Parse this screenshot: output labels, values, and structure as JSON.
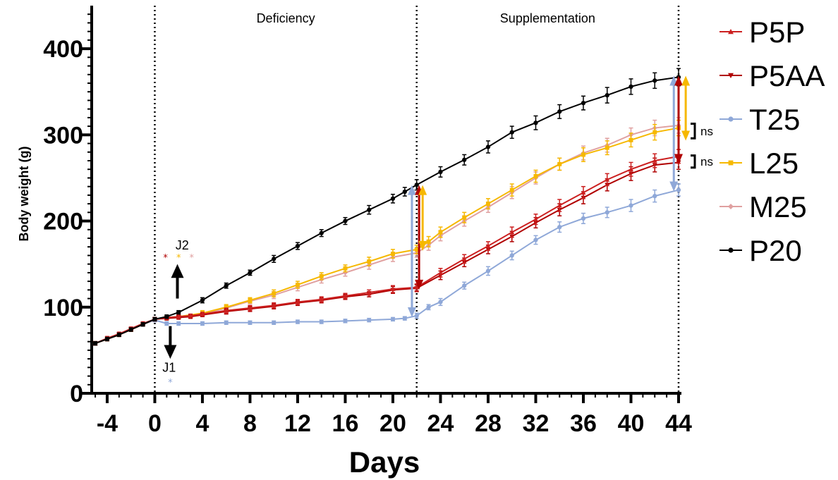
{
  "chart_data": {
    "type": "line",
    "title": "",
    "xlabel": "Days",
    "ylabel": "Body weight (g)",
    "xlim": [
      -5.3,
      44
    ],
    "ylim": [
      0,
      450
    ],
    "xticks": [
      "-4",
      "0",
      "4",
      "8",
      "12",
      "16",
      "20",
      "24",
      "28",
      "32",
      "36",
      "40",
      "44"
    ],
    "xtick_values": [
      -4,
      0,
      4,
      8,
      12,
      16,
      20,
      24,
      28,
      32,
      36,
      40,
      44
    ],
    "yticks": [
      "0",
      "100",
      "200",
      "300",
      "400"
    ],
    "ytick_values": [
      0,
      100,
      200,
      300,
      400
    ],
    "vlines": [
      0,
      22,
      44
    ],
    "phases": [
      {
        "label": "Deficiency",
        "x": 11
      },
      {
        "label": "Supplementation",
        "x": 33
      }
    ],
    "legend_position": "right",
    "series": [
      {
        "name": "P5P",
        "color": "#cc2020",
        "marker": "triangle-up",
        "x": [
          -5,
          -4,
          -3,
          -2,
          -1,
          0,
          1,
          2,
          3,
          4,
          6,
          8,
          10,
          12,
          14,
          16,
          18,
          20,
          22,
          24,
          26,
          28,
          30,
          32,
          34,
          36,
          38,
          40,
          42,
          44
        ],
        "y": [
          58,
          64,
          69,
          75,
          81,
          86,
          88,
          89,
          90,
          92,
          96,
          99,
          102,
          106,
          109,
          113,
          117,
          121,
          123,
          140,
          156,
          171,
          187,
          202,
          218,
          233,
          248,
          260,
          270,
          275
        ],
        "err": [
          2,
          2,
          2,
          2,
          2,
          2,
          2,
          2,
          2,
          2,
          3,
          3,
          3,
          3,
          3,
          3,
          3,
          4,
          4,
          5,
          5,
          5,
          6,
          6,
          7,
          7,
          7,
          8,
          8,
          8
        ]
      },
      {
        "name": "P5AA",
        "color": "#b00000",
        "marker": "triangle-down",
        "x": [
          -5,
          -4,
          -3,
          -2,
          -1,
          0,
          1,
          2,
          3,
          4,
          6,
          8,
          10,
          12,
          14,
          16,
          18,
          20,
          22,
          24,
          26,
          28,
          30,
          32,
          34,
          36,
          38,
          40,
          42,
          44
        ],
        "y": [
          58,
          63,
          68,
          74,
          80,
          86,
          87,
          88,
          89,
          91,
          95,
          98,
          101,
          105,
          108,
          112,
          115,
          120,
          122,
          137,
          152,
          167,
          182,
          198,
          213,
          227,
          242,
          255,
          265,
          268
        ],
        "err": [
          2,
          2,
          2,
          2,
          2,
          2,
          2,
          2,
          2,
          2,
          3,
          3,
          3,
          3,
          3,
          3,
          3,
          4,
          4,
          5,
          5,
          5,
          6,
          6,
          7,
          7,
          7,
          8,
          8,
          8
        ]
      },
      {
        "name": "T25",
        "color": "#8fa8d8",
        "marker": "circle",
        "x": [
          -5,
          -4,
          -3,
          -2,
          -1,
          0,
          1,
          2,
          4,
          6,
          8,
          10,
          12,
          14,
          16,
          18,
          20,
          21,
          22,
          23,
          24,
          26,
          28,
          30,
          32,
          34,
          36,
          38,
          40,
          42,
          44
        ],
        "y": [
          58,
          63,
          68,
          74,
          80,
          85,
          81,
          81,
          81,
          82,
          82,
          82,
          83,
          83,
          84,
          85,
          86,
          87,
          90,
          100,
          106,
          125,
          142,
          160,
          178,
          193,
          203,
          210,
          218,
          229,
          236
        ],
        "err": [
          2,
          2,
          2,
          2,
          2,
          2,
          2,
          2,
          2,
          2,
          2,
          2,
          2,
          2,
          2,
          2,
          2,
          2,
          3,
          3,
          4,
          4,
          5,
          5,
          5,
          6,
          6,
          6,
          7,
          7,
          7
        ]
      },
      {
        "name": "L25",
        "color": "#f6b800",
        "marker": "square",
        "x": [
          -5,
          -4,
          -3,
          -2,
          -1,
          0,
          1,
          2,
          4,
          6,
          8,
          10,
          12,
          14,
          16,
          18,
          20,
          22,
          23,
          24,
          26,
          28,
          30,
          32,
          34,
          36,
          38,
          40,
          42,
          44
        ],
        "y": [
          58,
          63,
          68,
          74,
          80,
          86,
          88,
          89,
          93,
          100,
          108,
          116,
          126,
          136,
          145,
          153,
          162,
          167,
          176,
          187,
          204,
          220,
          236,
          252,
          266,
          277,
          285,
          294,
          303,
          308
        ],
        "err": [
          2,
          2,
          2,
          2,
          2,
          2,
          2,
          2,
          3,
          3,
          3,
          4,
          4,
          4,
          4,
          5,
          5,
          5,
          6,
          6,
          6,
          6,
          7,
          7,
          7,
          8,
          8,
          8,
          9,
          9
        ]
      },
      {
        "name": "M25",
        "color": "#e0a0a0",
        "marker": "diamond",
        "x": [
          -5,
          -4,
          -3,
          -2,
          -1,
          0,
          1,
          2,
          4,
          6,
          8,
          10,
          12,
          14,
          16,
          18,
          20,
          22,
          23,
          24,
          26,
          28,
          30,
          32,
          34,
          36,
          38,
          40,
          42,
          44
        ],
        "y": [
          58,
          63,
          68,
          74,
          80,
          86,
          88,
          89,
          92,
          99,
          107,
          114,
          123,
          132,
          140,
          149,
          158,
          163,
          172,
          183,
          200,
          216,
          233,
          250,
          266,
          279,
          288,
          300,
          308,
          311
        ],
        "err": [
          2,
          2,
          2,
          2,
          2,
          2,
          2,
          2,
          3,
          3,
          3,
          4,
          4,
          4,
          4,
          5,
          5,
          5,
          6,
          6,
          6,
          6,
          7,
          7,
          7,
          8,
          8,
          8,
          9,
          9
        ]
      },
      {
        "name": "P20",
        "color": "#000000",
        "marker": "circle",
        "x": [
          -5,
          -4,
          -3,
          -2,
          -1,
          0,
          1,
          2,
          4,
          6,
          8,
          10,
          12,
          14,
          16,
          18,
          20,
          21,
          22,
          24,
          26,
          28,
          30,
          32,
          34,
          36,
          38,
          40,
          42,
          44
        ],
        "y": [
          58,
          63,
          68,
          74,
          80,
          86,
          89,
          94,
          108,
          125,
          140,
          156,
          171,
          186,
          200,
          213,
          226,
          234,
          242,
          257,
          271,
          286,
          303,
          314,
          327,
          337,
          346,
          356,
          363,
          367
        ],
        "err": [
          2,
          2,
          2,
          2,
          2,
          2,
          2,
          2,
          3,
          3,
          3,
          4,
          4,
          4,
          4,
          5,
          5,
          5,
          6,
          6,
          6,
          7,
          7,
          8,
          8,
          8,
          9,
          9,
          9,
          10
        ]
      }
    ],
    "annotations": {
      "j2_label": "J2",
      "j1_label": "J1",
      "ns_labels": [
        "ns",
        "ns"
      ],
      "star": "*",
      "j2_star_colors": [
        "#b00000",
        "#f6b800",
        "#e0a0a0"
      ],
      "j1_star_color": "#8fa8d8"
    }
  }
}
